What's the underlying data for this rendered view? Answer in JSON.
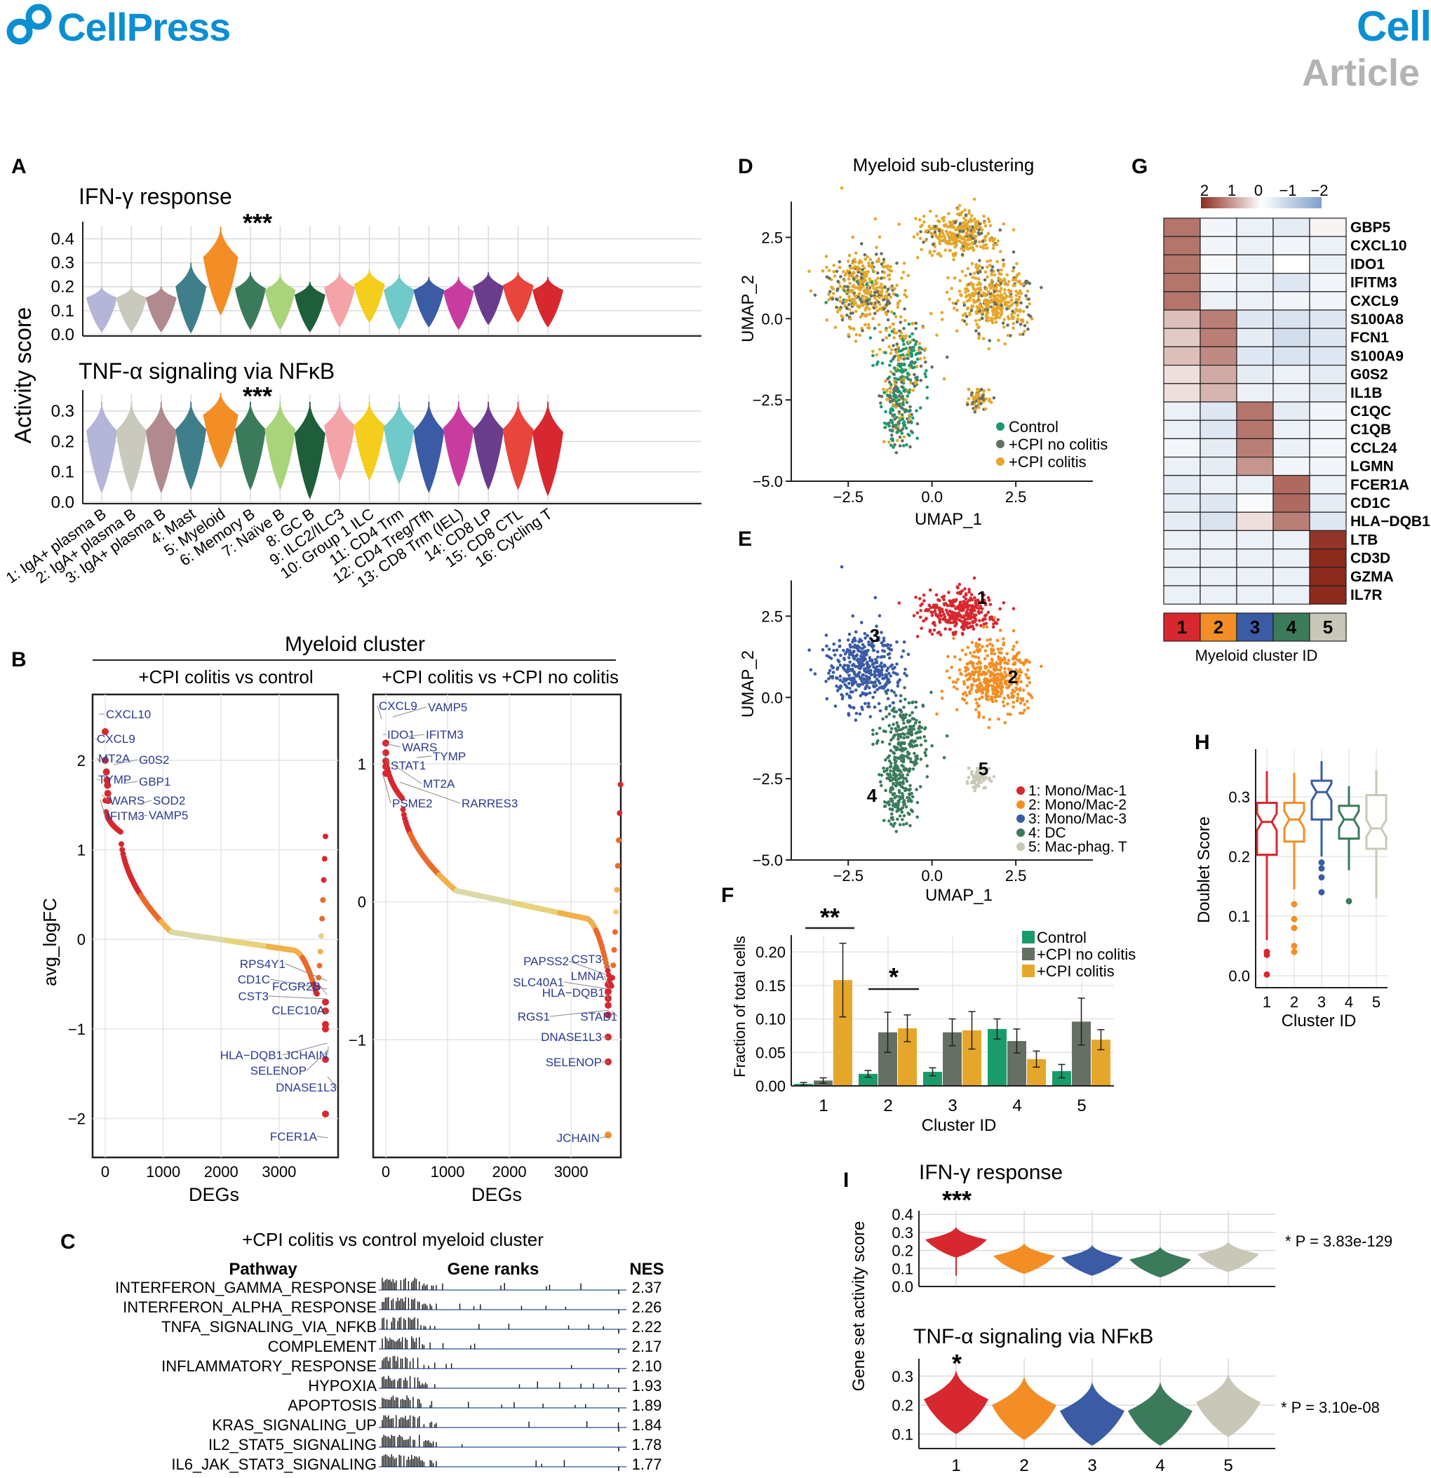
{
  "header": {
    "brand": "CellPress",
    "journal": "Cell",
    "article_type": "Article"
  },
  "colors": {
    "brand_blue": "#0b8fd1",
    "grey_text": "#b3b3b3",
    "green": "#1a9b6c",
    "darkgrey": "#666f63",
    "gold": "#e5a72b",
    "c1": "#d7282f",
    "c2": "#f28e25",
    "c3": "#3b5ba5",
    "c4": "#3c7a5c",
    "c5": "#c9c8b8",
    "red_dot": "#d7282f"
  },
  "panelA": {
    "letter": "A",
    "ylabel": "Activity score",
    "top_title": "IFN-γ response",
    "bottom_title": "TNF-α signaling via NFκB",
    "sig": "***",
    "top_yticks": [
      "0.0",
      "0.1",
      "0.2",
      "0.3",
      "0.4"
    ],
    "bottom_yticks": [
      "0.0",
      "0.1",
      "0.2",
      "0.3"
    ],
    "clusters": [
      {
        "label": "1: IgA+ plasma B",
        "color": "#b5b5d8"
      },
      {
        "label": "2: IgA+ plasma B",
        "color": "#c9c9bd"
      },
      {
        "label": "3: IgA+ plasma B",
        "color": "#b08a8f"
      },
      {
        "label": "4: Mast",
        "color": "#3f7f8c"
      },
      {
        "label": "5: Myeloid",
        "color": "#f28e25"
      },
      {
        "label": "6: Memory B",
        "color": "#3c7a5c"
      },
      {
        "label": "7: Naïve B",
        "color": "#a9d47a"
      },
      {
        "label": "8: GC B",
        "color": "#1f5e3a"
      },
      {
        "label": "9: ILC2/ILC3",
        "color": "#f4a3a8"
      },
      {
        "label": "10: Group 1 ILC",
        "color": "#f5cd1d"
      },
      {
        "label": "11: CD4 Trm",
        "color": "#6fcac9"
      },
      {
        "label": "12: CD4 Treg/Tfh",
        "color": "#3b5ba5"
      },
      {
        "label": "13: CD8 Trm (IEL)",
        "color": "#c83c9f"
      },
      {
        "label": "14: CD8 LP",
        "color": "#6a3d8c"
      },
      {
        "label": "15: CD8 CTL",
        "color": "#e8453c"
      },
      {
        "label": "16: Cycling T",
        "color": "#d7282f"
      }
    ]
  },
  "panelB": {
    "letter": "B",
    "title": "Myeloid cluster",
    "left_subtitle": "+CPI colitis vs control",
    "right_subtitle": "+CPI colitis vs +CPI no colitis",
    "ylabel": "avg_logFC",
    "xlabel": "DEGs",
    "left_yticks": [
      "2",
      "1",
      "0",
      "−1",
      "−2"
    ],
    "right_yticks": [
      "1",
      "0",
      "−1"
    ],
    "xticks": [
      "0",
      "1000",
      "2000",
      "3000"
    ],
    "left_genes_up": [
      "CXCL10",
      "CXCL9",
      "MT2A",
      "G0S2",
      "TYMP",
      "GBP1",
      "WARS",
      "SOD2",
      "IFITM3",
      "VAMP5"
    ],
    "left_genes_down": [
      "RPS4Y1",
      "CD1C",
      "FCGR2B",
      "CST3",
      "CLEC10A",
      "HLA−DQB1",
      "JCHAIN",
      "SELENOP",
      "DNASE1L3",
      "FCER1A"
    ],
    "right_genes_up": [
      "CXCL9",
      "VAMP5",
      "IDO1",
      "IFITM3",
      "WARS",
      "TYMP",
      "STAT1",
      "MT2A",
      "PSME2",
      "RARRES3"
    ],
    "right_genes_down": [
      "PAPSS2",
      "CST3",
      "LMNA",
      "SLC40A1",
      "HLA−DQB1",
      "RGS1",
      "STAB1",
      "DNASE1L3",
      "SELENOP",
      "JCHAIN"
    ]
  },
  "panelC": {
    "letter": "C",
    "title": "+CPI colitis vs control myeloid cluster",
    "col_pathway": "Pathway",
    "col_ranks": "Gene ranks",
    "col_nes": "NES",
    "rows": [
      {
        "pathway": "INTERFERON_GAMMA_RESPONSE",
        "nes": "2.37"
      },
      {
        "pathway": "INTERFERON_ALPHA_RESPONSE",
        "nes": "2.26"
      },
      {
        "pathway": "TNFA_SIGNALING_VIA_NFKB",
        "nes": "2.22"
      },
      {
        "pathway": "COMPLEMENT",
        "nes": "2.17"
      },
      {
        "pathway": "INFLAMMATORY_RESPONSE",
        "nes": "2.10"
      },
      {
        "pathway": "HYPOXIA",
        "nes": "1.93"
      },
      {
        "pathway": "APOPTOSIS",
        "nes": "1.89"
      },
      {
        "pathway": "KRAS_SIGNALING_UP",
        "nes": "1.84"
      },
      {
        "pathway": "IL2_STAT5_SIGNALING",
        "nes": "1.78"
      },
      {
        "pathway": "IL6_JAK_STAT3_SIGNALING",
        "nes": "1.77"
      }
    ]
  },
  "panelD": {
    "letter": "D",
    "title": "Myeloid sub-clustering",
    "xlabel": "UMAP_1",
    "ylabel": "UMAP_2",
    "xticks": [
      "−2.5",
      "0.0",
      "2.5"
    ],
    "yticks": [
      "2.5",
      "0.0",
      "−2.5",
      "−5.0"
    ],
    "legend": [
      "Control",
      "+CPI no colitis",
      "+CPI colitis"
    ]
  },
  "panelE": {
    "letter": "E",
    "xlabel": "UMAP_1",
    "ylabel": "UMAP_2",
    "xticks": [
      "−2.5",
      "0.0",
      "2.5"
    ],
    "yticks": [
      "2.5",
      "0.0",
      "−2.5",
      "−5.0"
    ],
    "cluster_numbers": [
      "1",
      "2",
      "3",
      "4",
      "5"
    ],
    "legend": [
      "1: Mono/Mac-1",
      "2: Mono/Mac-2",
      "3: Mono/Mac-3",
      "4: DC",
      "5: Mac-phag. T"
    ]
  },
  "panelF": {
    "letter": "F",
    "ylabel": "Fraction of total cells",
    "xlabel": "Cluster ID",
    "yticks": [
      "0.00",
      "0.05",
      "0.10",
      "0.15",
      "0.20"
    ],
    "legend": [
      "Control",
      "+CPI no colitis",
      "+CPI colitis"
    ],
    "sig1": "**",
    "sig2": "*"
  },
  "panelG": {
    "letter": "G",
    "scale_labels": [
      "2",
      "1",
      "0",
      "−1",
      "−2"
    ],
    "genes": [
      "GBP5",
      "CXCL10",
      "IDO1",
      "IFITM3",
      "CXCL9",
      "S100A8",
      "FCN1",
      "S100A9",
      "G0S2",
      "IL1B",
      "C1QC",
      "C1QB",
      "CCL24",
      "LGMN",
      "FCER1A",
      "CD1C",
      "HLA−DQB1",
      "LTB",
      "CD3D",
      "GZMA",
      "IL7R"
    ],
    "cluster_ids": [
      "1",
      "2",
      "3",
      "4",
      "5"
    ],
    "xlabel": "Myeloid cluster ID"
  },
  "panelH": {
    "letter": "H",
    "ylabel": "Doublet Score",
    "xlabel": "Cluster ID",
    "yticks": [
      "0.0",
      "0.1",
      "0.2",
      "0.3"
    ],
    "xticks": [
      "1",
      "2",
      "3",
      "4",
      "5"
    ]
  },
  "panelI": {
    "letter": "I",
    "top_title": "IFN-γ response",
    "bottom_title": "TNF-α signaling via NFκB",
    "ylabel": "Gene set activity score",
    "top_sig": "***",
    "bottom_sig": "*",
    "top_p": "* P = 3.83e-129",
    "bottom_p": "* P = 3.10e-08",
    "top_yticks": [
      "0.0",
      "0.1",
      "0.2",
      "0.3",
      "0.4"
    ],
    "bottom_yticks": [
      "0.1",
      "0.2",
      "0.3"
    ],
    "xticks": [
      "1",
      "2",
      "3",
      "4",
      "5"
    ]
  },
  "chart_data": [
    {
      "type": "bar",
      "panel": "F",
      "categories": [
        "1",
        "2",
        "3",
        "4",
        "5"
      ],
      "series": [
        {
          "name": "Control",
          "values": [
            0.003,
            0.018,
            0.021,
            0.085,
            0.022
          ]
        },
        {
          "name": "+CPI no colitis",
          "values": [
            0.008,
            0.08,
            0.08,
            0.067,
            0.096
          ]
        },
        {
          "name": "+CPI colitis",
          "values": [
            0.158,
            0.086,
            0.083,
            0.04,
            0.069
          ]
        }
      ],
      "errors": [
        [
          0.002,
          0.005,
          0.006,
          0.015,
          0.01
        ],
        [
          0.004,
          0.03,
          0.02,
          0.018,
          0.035
        ],
        [
          0.055,
          0.02,
          0.028,
          0.012,
          0.015
        ]
      ],
      "xlabel": "Cluster ID",
      "ylabel": "Fraction of total cells",
      "ylim": [
        0,
        0.22
      ]
    },
    {
      "type": "box",
      "panel": "H",
      "categories": [
        "1",
        "2",
        "3",
        "4",
        "5"
      ],
      "medians": [
        0.258,
        0.262,
        0.308,
        0.262,
        0.247
      ],
      "q1": [
        0.203,
        0.225,
        0.262,
        0.23,
        0.213
      ],
      "q3": [
        0.29,
        0.29,
        0.327,
        0.285,
        0.303
      ],
      "wmin": [
        0.06,
        0.145,
        0.2,
        0.177,
        0.13
      ],
      "wmax": [
        0.343,
        0.34,
        0.36,
        0.318,
        0.345
      ],
      "outliers": [
        [
          0.04,
          0.035,
          0.002
        ],
        [
          0.12,
          0.095,
          0.08,
          0.05,
          0.04
        ],
        [
          0.19,
          0.18,
          0.165,
          0.14
        ],
        [
          0.125
        ],
        []
      ],
      "xlabel": "Cluster ID",
      "ylabel": "Doublet Score",
      "ylim": [
        -0.02,
        0.38
      ]
    },
    {
      "type": "violin",
      "panel": "A-top",
      "categories": [
        "1",
        "2",
        "3",
        "4",
        "5",
        "6",
        "7",
        "8",
        "9",
        "10",
        "11",
        "12",
        "13",
        "14",
        "15",
        "16"
      ],
      "center": [
        0.1,
        0.1,
        0.1,
        0.08,
        0.17,
        0.11,
        0.11,
        0.1,
        0.12,
        0.14,
        0.11,
        0.12,
        0.11,
        0.13,
        0.14,
        0.12
      ],
      "max": [
        0.2,
        0.2,
        0.2,
        0.3,
        0.45,
        0.26,
        0.25,
        0.22,
        0.26,
        0.27,
        0.25,
        0.24,
        0.24,
        0.26,
        0.26,
        0.24
      ],
      "ylim": [
        0,
        0.46
      ]
    },
    {
      "type": "violin",
      "panel": "A-bottom",
      "categories": [
        "1",
        "2",
        "3",
        "4",
        "5",
        "6",
        "7",
        "8",
        "9",
        "10",
        "11",
        "12",
        "13",
        "14",
        "15",
        "16"
      ],
      "center": [
        0.12,
        0.12,
        0.12,
        0.13,
        0.2,
        0.13,
        0.13,
        0.1,
        0.16,
        0.16,
        0.15,
        0.12,
        0.14,
        0.13,
        0.13,
        0.11
      ],
      "max": [
        0.33,
        0.33,
        0.33,
        0.33,
        0.36,
        0.33,
        0.33,
        0.33,
        0.33,
        0.33,
        0.33,
        0.33,
        0.33,
        0.33,
        0.33,
        0.33
      ],
      "ylim": [
        0,
        0.36
      ]
    },
    {
      "type": "violin",
      "panel": "I-top",
      "categories": [
        "1",
        "2",
        "3",
        "4",
        "5"
      ],
      "center": [
        0.26,
        0.17,
        0.16,
        0.15,
        0.18
      ],
      "ylim": [
        0,
        0.42
      ]
    },
    {
      "type": "violin",
      "panel": "I-bottom",
      "categories": [
        "1",
        "2",
        "3",
        "4",
        "5"
      ],
      "center": [
        0.22,
        0.2,
        0.18,
        0.18,
        0.21
      ],
      "ylim": [
        0.05,
        0.36
      ]
    },
    {
      "type": "heatmap",
      "panel": "G",
      "rows": [
        "GBP5",
        "CXCL10",
        "IDO1",
        "IFITM3",
        "CXCL9",
        "S100A8",
        "FCN1",
        "S100A9",
        "G0S2",
        "IL1B",
        "C1QC",
        "C1QB",
        "CCL24",
        "LGMN",
        "FCER1A",
        "CD1C",
        "HLA−DQB1",
        "LTB",
        "CD3D",
        "GZMA",
        "IL7R"
      ],
      "columns": [
        "1",
        "2",
        "3",
        "4",
        "5"
      ],
      "values": [
        [
          1.3,
          -0.2,
          -0.3,
          -0.4,
          0.1
        ],
        [
          1.3,
          -0.2,
          -0.3,
          -0.2,
          -0.3
        ],
        [
          1.3,
          -0.1,
          -0.3,
          0.0,
          -0.3
        ],
        [
          1.3,
          -0.2,
          -0.3,
          -0.5,
          -0.2
        ],
        [
          1.3,
          -0.3,
          -0.3,
          -0.2,
          -0.2
        ],
        [
          0.6,
          1.2,
          -0.5,
          -0.6,
          -0.5
        ],
        [
          0.5,
          1.2,
          -0.4,
          -0.7,
          -0.5
        ],
        [
          0.6,
          1.1,
          -0.5,
          -0.6,
          -0.5
        ],
        [
          0.3,
          0.8,
          -0.4,
          -0.3,
          -0.4
        ],
        [
          0.3,
          0.7,
          -0.3,
          -0.3,
          -0.4
        ],
        [
          -0.3,
          -0.5,
          1.3,
          -0.4,
          -0.2
        ],
        [
          -0.3,
          -0.5,
          1.3,
          -0.3,
          -0.2
        ],
        [
          -0.2,
          -0.4,
          1.2,
          -0.3,
          -0.2
        ],
        [
          -0.3,
          -0.4,
          1.0,
          -0.2,
          -0.2
        ],
        [
          -0.4,
          -0.3,
          -0.3,
          1.4,
          -0.3
        ],
        [
          -0.4,
          -0.5,
          -0.1,
          1.4,
          -0.4
        ],
        [
          -0.4,
          -0.6,
          0.3,
          1.2,
          -0.5
        ],
        [
          -0.3,
          -0.3,
          -0.3,
          -0.3,
          1.9
        ],
        [
          -0.3,
          -0.3,
          -0.3,
          -0.3,
          2.0
        ],
        [
          -0.3,
          -0.3,
          -0.3,
          -0.3,
          2.0
        ],
        [
          -0.3,
          -0.3,
          -0.3,
          -0.3,
          2.0
        ]
      ],
      "scale": [
        -2,
        2
      ]
    }
  ]
}
